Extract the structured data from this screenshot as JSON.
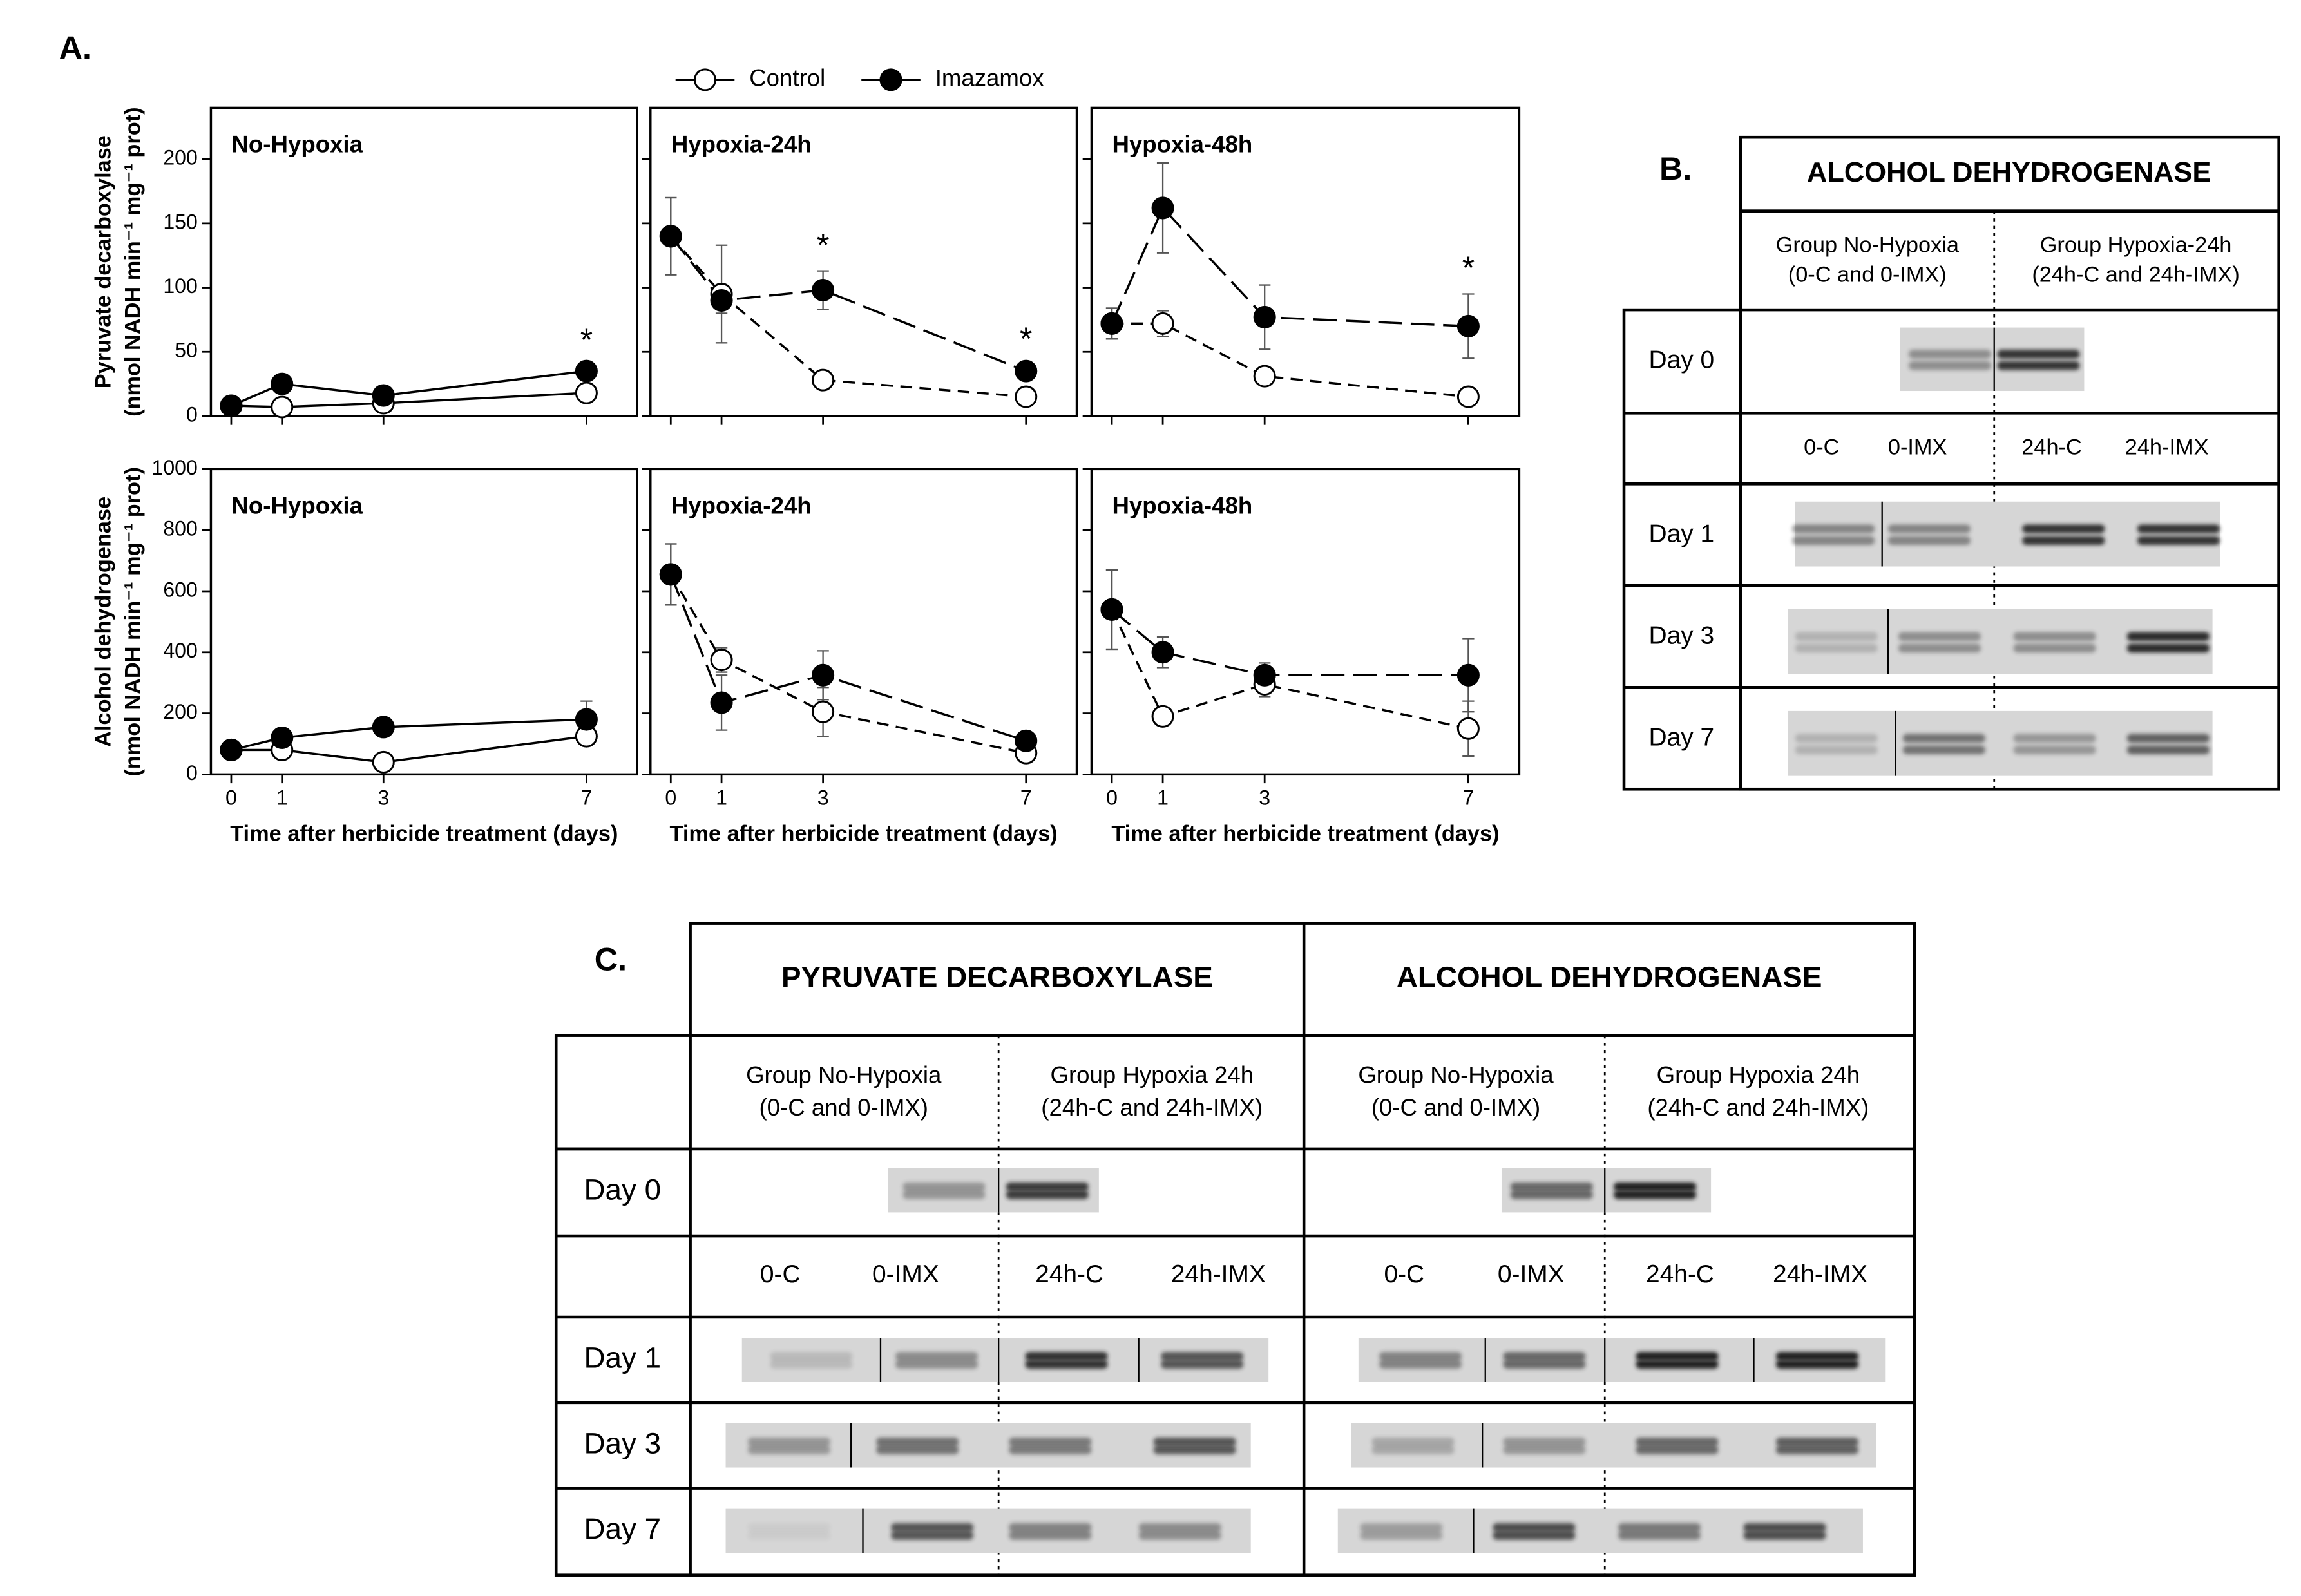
{
  "panels": {
    "a": "A.",
    "b": "B.",
    "c": "C."
  },
  "chart_data": [
    {
      "type": "line",
      "title": "No-Hypoxia",
      "y_label": [
        "Pyruvate decarboxylase",
        "(nmol NADH min⁻¹ mg⁻¹ prot)"
      ],
      "x": [
        0,
        1,
        3,
        7
      ],
      "xlim": [
        -0.4,
        8
      ],
      "xticks": [
        0,
        1,
        3,
        7
      ],
      "ylim": [
        0,
        240
      ],
      "yticks": [
        0,
        50,
        100,
        150,
        200
      ],
      "series": [
        {
          "name": "Control",
          "color": "#ffffff",
          "line_style": "solid",
          "values": [
            8,
            7,
            10,
            18
          ],
          "errors": [
            2,
            2,
            2,
            3
          ]
        },
        {
          "name": "Imazamox",
          "color": "#000000",
          "line_style": "solid",
          "values": [
            8,
            25,
            16,
            35
          ],
          "errors": [
            2,
            3,
            2,
            4
          ]
        }
      ],
      "annotations": [
        {
          "text": "*",
          "x": 7
        }
      ]
    },
    {
      "type": "line",
      "title": "Hypoxia-24h",
      "x": [
        0,
        1,
        3,
        7
      ],
      "xlim": [
        -0.4,
        8
      ],
      "xticks": [
        0,
        1,
        3,
        7
      ],
      "ylim": [
        0,
        240
      ],
      "yticks": [
        0,
        50,
        100,
        150,
        200
      ],
      "series": [
        {
          "name": "Control",
          "color": "#ffffff",
          "line_style": "dashed",
          "values": [
            140,
            95,
            28,
            15
          ],
          "errors": [
            30,
            38,
            5,
            4
          ]
        },
        {
          "name": "Imazamox",
          "color": "#000000",
          "line_style": "long-dashed",
          "values": [
            140,
            90,
            98,
            35
          ],
          "errors": [
            30,
            10,
            15,
            5
          ]
        }
      ],
      "annotations": [
        {
          "text": "*",
          "x": 3
        },
        {
          "text": "*",
          "x": 7
        }
      ]
    },
    {
      "type": "line",
      "title": "Hypoxia-48h",
      "x": [
        0,
        1,
        3,
        7
      ],
      "xlim": [
        -0.4,
        8
      ],
      "xticks": [
        0,
        1,
        3,
        7
      ],
      "ylim": [
        0,
        240
      ],
      "yticks": [
        0,
        50,
        100,
        150,
        200
      ],
      "series": [
        {
          "name": "Control",
          "color": "#ffffff",
          "line_style": "dashed",
          "values": [
            72,
            72,
            31,
            15
          ],
          "errors": [
            12,
            10,
            5,
            4
          ]
        },
        {
          "name": "Imazamox",
          "color": "#000000",
          "line_style": "long-dashed",
          "values": [
            72,
            162,
            77,
            70
          ],
          "errors": [
            12,
            35,
            25,
            25
          ]
        }
      ],
      "annotations": [
        {
          "text": "*",
          "x": 7
        }
      ]
    },
    {
      "type": "line",
      "title": "No-Hypoxia",
      "y_label": [
        "Alcohol dehydrogenase",
        "(nmol NADH min⁻¹ mg⁻¹ prot)"
      ],
      "x_label": "Time after herbicide treatment (days)",
      "x": [
        0,
        1,
        3,
        7
      ],
      "xlim": [
        -0.4,
        8
      ],
      "xticks": [
        0,
        1,
        3,
        7
      ],
      "ylim": [
        0,
        1000
      ],
      "yticks": [
        0,
        200,
        400,
        600,
        800,
        1000
      ],
      "series": [
        {
          "name": "Control",
          "color": "#ffffff",
          "line_style": "solid",
          "values": [
            80,
            80,
            40,
            125
          ],
          "errors": [
            10,
            10,
            10,
            20
          ]
        },
        {
          "name": "Imazamox",
          "color": "#000000",
          "line_style": "solid",
          "values": [
            80,
            120,
            155,
            180
          ],
          "errors": [
            10,
            15,
            15,
            60
          ]
        }
      ]
    },
    {
      "type": "line",
      "title": "Hypoxia-24h",
      "x_label": "Time after herbicide treatment (days)",
      "x": [
        0,
        1,
        3,
        7
      ],
      "xlim": [
        -0.4,
        8
      ],
      "xticks": [
        0,
        1,
        3,
        7
      ],
      "ylim": [
        0,
        1000
      ],
      "yticks": [
        0,
        200,
        400,
        600,
        800,
        1000
      ],
      "series": [
        {
          "name": "Control",
          "color": "#ffffff",
          "line_style": "dashed",
          "values": [
            655,
            375,
            205,
            70
          ],
          "errors": [
            100,
            40,
            80,
            20
          ]
        },
        {
          "name": "Imazamox",
          "color": "#000000",
          "line_style": "long-dashed",
          "values": [
            655,
            235,
            325,
            110
          ],
          "errors": [
            100,
            90,
            80,
            15
          ]
        }
      ]
    },
    {
      "type": "line",
      "title": "Hypoxia-48h",
      "x_label": "Time after herbicide treatment (days)",
      "x": [
        0,
        1,
        3,
        7
      ],
      "xlim": [
        -0.4,
        8
      ],
      "xticks": [
        0,
        1,
        3,
        7
      ],
      "ylim": [
        0,
        1000
      ],
      "yticks": [
        0,
        200,
        400,
        600,
        800,
        1000
      ],
      "series": [
        {
          "name": "Control",
          "color": "#ffffff",
          "line_style": "dashed",
          "values": [
            540,
            190,
            295,
            150
          ],
          "errors": [
            130,
            20,
            40,
            90
          ]
        },
        {
          "name": "Imazamox",
          "color": "#000000",
          "line_style": "long-dashed",
          "values": [
            540,
            400,
            325,
            325
          ],
          "errors": [
            130,
            50,
            40,
            120
          ]
        }
      ]
    }
  ],
  "panel_b": {
    "title": "ALCOHOL DEHYDROGENASE",
    "groups": [
      [
        "Group No-Hypoxia",
        "(0-C and 0-IMX)"
      ],
      [
        "Group Hypoxia-24h",
        "(24h-C and 24h-IMX)"
      ]
    ],
    "lanes": [
      "0-C",
      "0-IMX",
      "24h-C",
      "24h-IMX"
    ],
    "rows": [
      "Day 0",
      "Day 1",
      "Day 3",
      "Day 7"
    ]
  },
  "panel_c": {
    "enzymes": [
      {
        "title": "PYRUVATE DECARBOXYLASE",
        "groups": [
          [
            "Group No-Hypoxia",
            "(0-C and 0-IMX)"
          ],
          [
            "Group Hypoxia 24h",
            "(24h-C and 24h-IMX)"
          ]
        ],
        "lanes": [
          "0-C",
          "0-IMX",
          "24h-C",
          "24h-IMX"
        ]
      },
      {
        "title": "ALCOHOL DEHYDROGENASE",
        "groups": [
          [
            "Group No-Hypoxia",
            "(0-C and 0-IMX)"
          ],
          [
            "Group Hypoxia 24h",
            "(24h-C and 24h-IMX)"
          ]
        ],
        "lanes": [
          "0-C",
          "0-IMX",
          "24h-C",
          "24h-IMX"
        ]
      }
    ],
    "rows": [
      "Day 0",
      "Day 1",
      "Day 3",
      "Day 7"
    ]
  }
}
